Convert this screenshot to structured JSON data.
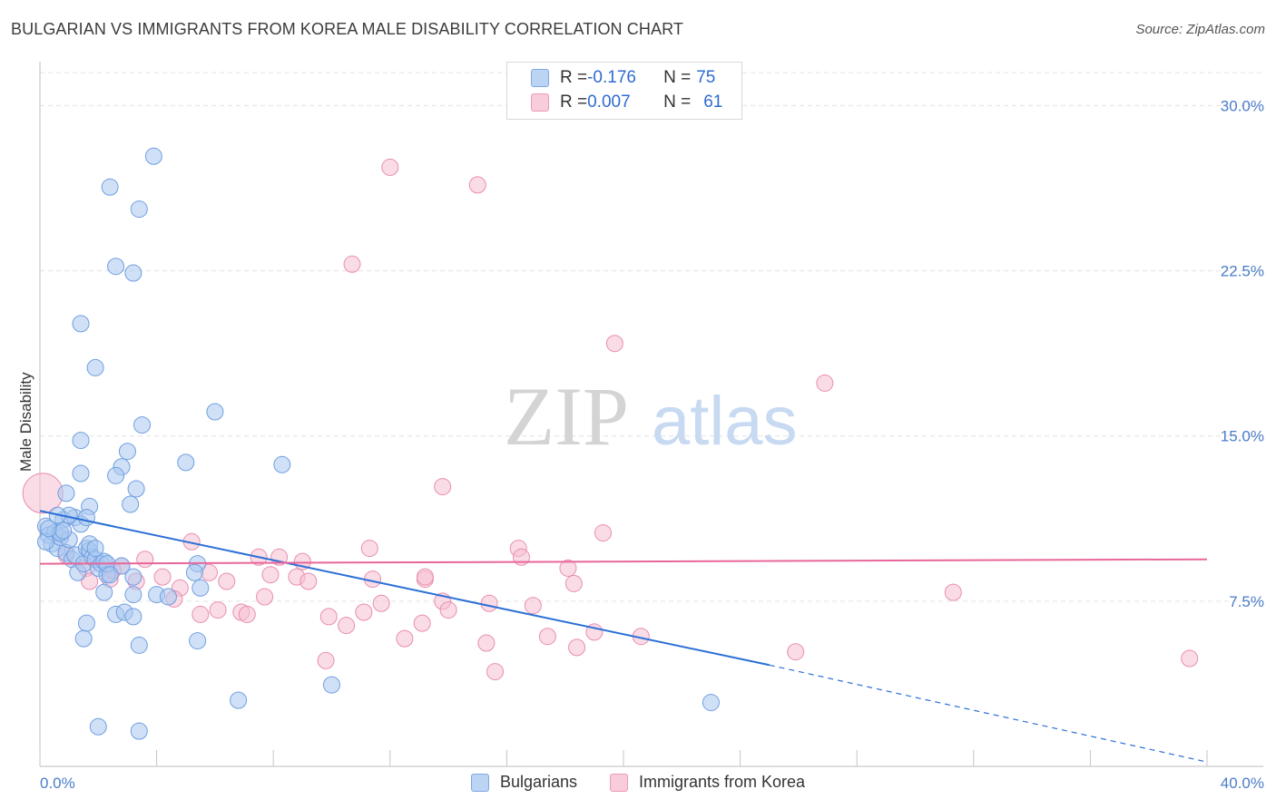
{
  "header": {
    "title": "BULGARIAN VS IMMIGRANTS FROM KOREA MALE DISABILITY CORRELATION CHART",
    "source": "Source: ZipAtlas.com"
  },
  "legend": {
    "rows": [
      {
        "r_label": "R = ",
        "r_value": "-0.176",
        "n_label": "N = ",
        "n_value": "75"
      },
      {
        "r_label": "R = ",
        "r_value": "0.007",
        "n_label": "N = ",
        "n_value": "61"
      }
    ]
  },
  "bottom_legend": [
    "Bulgarians",
    "Immigrants from Korea"
  ],
  "watermark": {
    "zip": "ZIP",
    "atlas": "atlas"
  },
  "colors": {
    "blue_fill": "#a9c8f0",
    "blue_stroke": "#6f9ee0",
    "blue_line": "#2c6fd6",
    "pink_fill": "#f6bfd1",
    "pink_stroke": "#e98daf",
    "pink_line": "#e8679a",
    "tick_text": "#4a7cc9",
    "grid": "#e3e3e3"
  },
  "chart_data": {
    "type": "scatter",
    "title": "BULGARIAN VS IMMIGRANTS FROM KOREA MALE DISABILITY CORRELATION CHART",
    "xlabel": "",
    "ylabel": "Male Disability",
    "xlim": [
      0,
      40
    ],
    "ylim": [
      0,
      31.5
    ],
    "x_tick_labels": [
      "0.0%",
      "40.0%"
    ],
    "y_ticks": [
      7.5,
      15.0,
      22.5,
      30.0
    ],
    "y_tick_labels": [
      "7.5%",
      "15.0%",
      "22.5%",
      "30.0%"
    ],
    "grid": true,
    "series": [
      {
        "name": "Bulgarians",
        "R": -0.176,
        "N": 75,
        "trend": {
          "x0": 0,
          "y0": 11.6,
          "x1": 25.0,
          "y1": 4.6,
          "dash_to_x": 40,
          "dash_to_y": 0.2
        },
        "points": [
          [
            0.2,
            10.9
          ],
          [
            0.3,
            10.5
          ],
          [
            0.4,
            10.1
          ],
          [
            0.5,
            10.6
          ],
          [
            0.6,
            9.9
          ],
          [
            0.7,
            10.4
          ],
          [
            0.8,
            11.2
          ],
          [
            0.9,
            9.7
          ],
          [
            1.0,
            10.3
          ],
          [
            1.1,
            9.4
          ],
          [
            1.2,
            9.6
          ],
          [
            1.3,
            8.8
          ],
          [
            1.4,
            13.3
          ],
          [
            1.5,
            9.2
          ],
          [
            1.6,
            9.9
          ],
          [
            1.7,
            9.8
          ],
          [
            1.8,
            9.5
          ],
          [
            1.9,
            9.4
          ],
          [
            2.0,
            9.0
          ],
          [
            2.1,
            9.2
          ],
          [
            2.2,
            9.3
          ],
          [
            2.3,
            8.7
          ],
          [
            0.2,
            10.2
          ],
          [
            0.9,
            12.4
          ],
          [
            1.2,
            11.3
          ],
          [
            1.4,
            11.0
          ],
          [
            1.7,
            11.8
          ],
          [
            1.0,
            11.4
          ],
          [
            0.6,
            11.4
          ],
          [
            3.9,
            27.7
          ],
          [
            2.4,
            26.3
          ],
          [
            3.4,
            25.3
          ],
          [
            2.6,
            22.7
          ],
          [
            3.2,
            22.4
          ],
          [
            1.4,
            20.1
          ],
          [
            1.9,
            18.1
          ],
          [
            6.0,
            16.1
          ],
          [
            3.5,
            15.5
          ],
          [
            1.4,
            14.8
          ],
          [
            3.0,
            14.3
          ],
          [
            5.0,
            13.8
          ],
          [
            2.8,
            13.6
          ],
          [
            8.3,
            13.7
          ],
          [
            2.6,
            13.2
          ],
          [
            3.3,
            12.6
          ],
          [
            3.1,
            11.9
          ],
          [
            1.6,
            11.3
          ],
          [
            0.7,
            10.6
          ],
          [
            1.7,
            10.1
          ],
          [
            1.9,
            9.9
          ],
          [
            2.3,
            9.2
          ],
          [
            2.8,
            9.1
          ],
          [
            5.4,
            9.2
          ],
          [
            5.3,
            8.8
          ],
          [
            2.4,
            8.7
          ],
          [
            3.2,
            8.6
          ],
          [
            5.5,
            8.1
          ],
          [
            2.2,
            7.9
          ],
          [
            3.2,
            7.8
          ],
          [
            4.0,
            7.8
          ],
          [
            4.4,
            7.7
          ],
          [
            2.6,
            6.9
          ],
          [
            2.9,
            7.0
          ],
          [
            3.2,
            6.8
          ],
          [
            1.6,
            6.5
          ],
          [
            1.5,
            5.8
          ],
          [
            5.4,
            5.7
          ],
          [
            3.4,
            5.5
          ],
          [
            10.0,
            3.7
          ],
          [
            6.8,
            3.0
          ],
          [
            2.0,
            1.8
          ],
          [
            3.4,
            1.6
          ],
          [
            23.0,
            2.9
          ],
          [
            0.3,
            10.8
          ],
          [
            0.8,
            10.7
          ]
        ]
      },
      {
        "name": "Immigrants from Korea",
        "R": 0.007,
        "N": 61,
        "trend": {
          "x0": 0,
          "y0": 9.2,
          "x1": 40,
          "y1": 9.4
        },
        "points": [
          [
            0.1,
            12.4
          ],
          [
            12.0,
            27.2
          ],
          [
            15.0,
            26.4
          ],
          [
            10.7,
            22.8
          ],
          [
            19.7,
            19.2
          ],
          [
            26.9,
            17.4
          ],
          [
            13.8,
            12.7
          ],
          [
            19.3,
            10.6
          ],
          [
            5.2,
            10.2
          ],
          [
            11.3,
            9.9
          ],
          [
            16.4,
            9.9
          ],
          [
            16.5,
            9.5
          ],
          [
            7.5,
            9.5
          ],
          [
            8.2,
            9.5
          ],
          [
            9.0,
            9.3
          ],
          [
            3.6,
            9.4
          ],
          [
            2.8,
            9.1
          ],
          [
            18.1,
            9.0
          ],
          [
            5.8,
            8.8
          ],
          [
            7.9,
            8.7
          ],
          [
            8.8,
            8.6
          ],
          [
            9.2,
            8.4
          ],
          [
            11.4,
            8.5
          ],
          [
            13.2,
            8.5
          ],
          [
            18.3,
            8.3
          ],
          [
            3.3,
            8.4
          ],
          [
            4.2,
            8.6
          ],
          [
            4.8,
            8.1
          ],
          [
            6.4,
            8.4
          ],
          [
            2.4,
            8.5
          ],
          [
            31.3,
            7.9
          ],
          [
            7.7,
            7.7
          ],
          [
            11.7,
            7.4
          ],
          [
            13.8,
            7.5
          ],
          [
            15.4,
            7.4
          ],
          [
            16.9,
            7.3
          ],
          [
            4.6,
            7.6
          ],
          [
            6.9,
            7.0
          ],
          [
            7.1,
            6.9
          ],
          [
            5.5,
            6.9
          ],
          [
            6.1,
            7.1
          ],
          [
            9.9,
            6.8
          ],
          [
            10.5,
            6.4
          ],
          [
            11.1,
            7.0
          ],
          [
            13.1,
            6.5
          ],
          [
            14.0,
            7.1
          ],
          [
            12.5,
            5.8
          ],
          [
            17.4,
            5.9
          ],
          [
            19.0,
            6.1
          ],
          [
            20.6,
            5.9
          ],
          [
            15.3,
            5.6
          ],
          [
            18.4,
            5.4
          ],
          [
            25.9,
            5.2
          ],
          [
            9.8,
            4.8
          ],
          [
            15.6,
            4.3
          ],
          [
            39.4,
            4.9
          ],
          [
            1.6,
            9.0
          ],
          [
            2.5,
            8.9
          ],
          [
            0.9,
            9.6
          ],
          [
            1.7,
            8.4
          ],
          [
            13.2,
            8.6
          ]
        ]
      }
    ]
  }
}
